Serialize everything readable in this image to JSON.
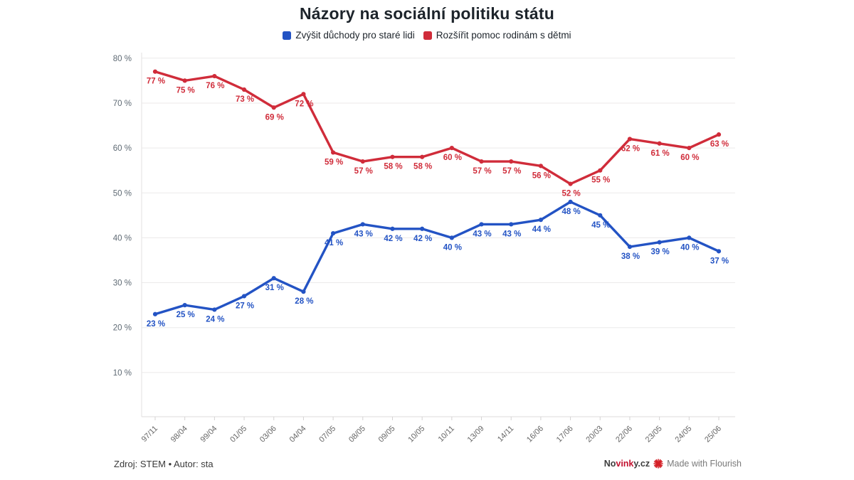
{
  "page": {
    "title": "Názory na sociální politiku státu"
  },
  "legend": {
    "items": [
      {
        "label": "Zvýšit důchody pro staré lidi",
        "color": "#2353c4"
      },
      {
        "label": "Rozšířit pomoc rodinám s dětmi",
        "color": "#d02c3a"
      }
    ]
  },
  "footer": {
    "source": "Zdroj: STEM • Autor: sta",
    "brand_prefix": "No",
    "brand_mid": "vink",
    "brand_suffix": "y.cz",
    "flourish_icon": "starburst-icon",
    "credit": "Made with Flourish"
  },
  "chart_data": {
    "type": "line",
    "title": "Názory na sociální politiku státu",
    "xlabel": "",
    "ylabel": "",
    "grid": true,
    "legend_position": "top",
    "ylim": [
      0,
      81
    ],
    "yticks": [
      10,
      20,
      30,
      40,
      50,
      60,
      70,
      80
    ],
    "ytick_suffix": " %",
    "categories": [
      "97/11",
      "98/04",
      "99/04",
      "01/05",
      "03/06",
      "04/04",
      "07/05",
      "08/05",
      "09/05",
      "10/05",
      "10/11",
      "13/09",
      "14/11",
      "16/06",
      "17/06",
      "20/03",
      "22/06",
      "23/05",
      "24/05",
      "25/06"
    ],
    "series": [
      {
        "name": "Rozšířit pomoc rodinám s dětmi",
        "color": "#d02c3a",
        "values": [
          77,
          75,
          76,
          73,
          69,
          72,
          59,
          57,
          58,
          58,
          60,
          57,
          57,
          56,
          52,
          55,
          62,
          61,
          60,
          63
        ]
      },
      {
        "name": "Zvýšit důchody pro staré lidi",
        "color": "#2353c4",
        "values": [
          23,
          25,
          24,
          27,
          31,
          28,
          41,
          43,
          42,
          42,
          40,
          43,
          43,
          44,
          48,
          45,
          38,
          39,
          40,
          37
        ]
      }
    ],
    "data_label_suffix": " %"
  }
}
